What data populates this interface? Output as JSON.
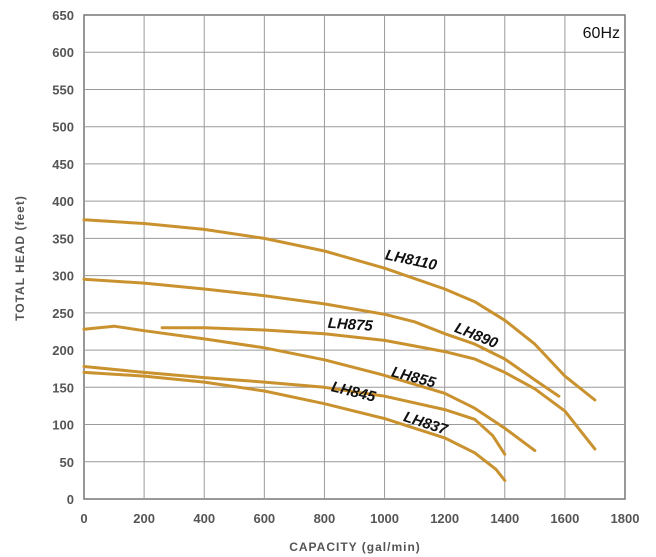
{
  "chart_data": {
    "type": "line",
    "frequency_label": "60Hz",
    "xlabel": "CAPACITY (gal/min)",
    "ylabel": "TOTAL HEAD (feet)",
    "xlim": [
      0,
      1800
    ],
    "ylim": [
      0,
      650
    ],
    "x_ticks": [
      "0",
      "200",
      "400",
      "600",
      "800",
      "1000",
      "1200",
      "1400",
      "1600",
      "1800"
    ],
    "y_ticks": [
      "0",
      "50",
      "100",
      "150",
      "200",
      "250",
      "300",
      "350",
      "400",
      "450",
      "500",
      "550",
      "600",
      "650"
    ],
    "grid": true,
    "line_color": "#C9922F",
    "series": [
      {
        "name": "LH8110",
        "label_at": [
          1000,
          322
        ],
        "label_angle": 12,
        "points": [
          [
            0,
            375
          ],
          [
            200,
            370
          ],
          [
            400,
            362
          ],
          [
            600,
            350
          ],
          [
            800,
            333
          ],
          [
            1000,
            310
          ],
          [
            1200,
            282
          ],
          [
            1300,
            265
          ],
          [
            1400,
            240
          ],
          [
            1500,
            208
          ],
          [
            1600,
            165
          ],
          [
            1700,
            133
          ]
        ]
      },
      {
        "name": "LH890",
        "label_at": [
          1230,
          225
        ],
        "label_angle": 22,
        "points": [
          [
            0,
            295
          ],
          [
            200,
            290
          ],
          [
            400,
            282
          ],
          [
            600,
            273
          ],
          [
            800,
            262
          ],
          [
            1000,
            248
          ],
          [
            1100,
            238
          ],
          [
            1200,
            222
          ],
          [
            1300,
            208
          ],
          [
            1400,
            188
          ],
          [
            1500,
            160
          ],
          [
            1580,
            138
          ]
        ]
      },
      {
        "name": "LH875",
        "label_at": [
          810,
          230
        ],
        "label_angle": 4,
        "points": [
          [
            0,
            228
          ],
          [
            100,
            232
          ],
          [
            200,
            226
          ],
          [
            400,
            215
          ],
          [
            600,
            203
          ],
          [
            800,
            187
          ],
          [
            1000,
            166
          ],
          [
            1200,
            142
          ],
          [
            1300,
            122
          ],
          [
            1400,
            95
          ],
          [
            1500,
            65
          ]
        ]
      },
      {
        "name": "LH855",
        "label_at": [
          1020,
          165
        ],
        "label_angle": 15,
        "points": [
          [
            260,
            230
          ],
          [
            400,
            230
          ],
          [
            600,
            227
          ],
          [
            800,
            222
          ],
          [
            1000,
            213
          ],
          [
            1200,
            198
          ],
          [
            1300,
            188
          ],
          [
            1400,
            170
          ],
          [
            1500,
            148
          ],
          [
            1600,
            118
          ],
          [
            1700,
            67
          ]
        ]
      },
      {
        "name": "LH845",
        "label_at": [
          820,
          145
        ],
        "label_angle": 14,
        "points": [
          [
            0,
            178
          ],
          [
            200,
            170
          ],
          [
            400,
            163
          ],
          [
            600,
            157
          ],
          [
            800,
            150
          ],
          [
            1000,
            138
          ],
          [
            1200,
            120
          ],
          [
            1300,
            107
          ],
          [
            1360,
            85
          ],
          [
            1400,
            60
          ]
        ]
      },
      {
        "name": "LH837",
        "label_at": [
          1060,
          105
        ],
        "label_angle": 18,
        "points": [
          [
            0,
            170
          ],
          [
            200,
            165
          ],
          [
            400,
            157
          ],
          [
            600,
            145
          ],
          [
            800,
            128
          ],
          [
            1000,
            108
          ],
          [
            1200,
            82
          ],
          [
            1300,
            62
          ],
          [
            1370,
            40
          ],
          [
            1400,
            25
          ]
        ]
      }
    ]
  }
}
